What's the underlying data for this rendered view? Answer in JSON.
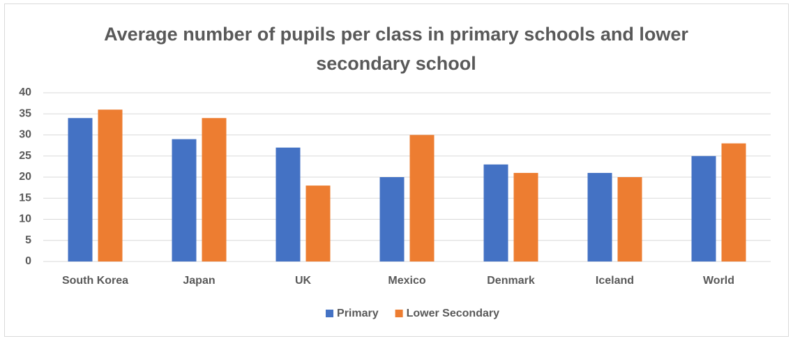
{
  "chart_data": {
    "type": "bar",
    "title": "Average number of pupils per class in primary schools and lower secondary school",
    "categories": [
      "South Korea",
      "Japan",
      "UK",
      "Mexico",
      "Denmark",
      "Iceland",
      "World"
    ],
    "series": [
      {
        "name": "Primary",
        "color": "#4472c4",
        "values": [
          34,
          29,
          27,
          20,
          23,
          21,
          25
        ]
      },
      {
        "name": "Lower Secondary",
        "color": "#ed7d31",
        "values": [
          36,
          34,
          18,
          30,
          21,
          20,
          28
        ]
      }
    ],
    "ylim": [
      0,
      40
    ],
    "yticks": [
      0,
      5,
      10,
      15,
      20,
      25,
      30,
      35,
      40
    ],
    "grid": true,
    "legend": "bottom"
  }
}
